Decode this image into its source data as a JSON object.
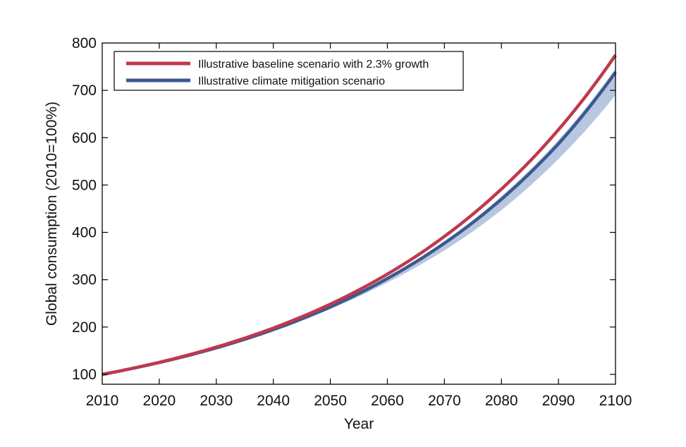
{
  "chart_data": {
    "type": "line",
    "title": "",
    "xlabel": "Year",
    "ylabel": "Global consumption (2010=100%)",
    "xlim": [
      2010,
      2100
    ],
    "ylim": [
      85,
      800
    ],
    "xticks": [
      2010,
      2020,
      2030,
      2040,
      2050,
      2060,
      2070,
      2080,
      2090,
      2100
    ],
    "yticks": [
      100,
      200,
      300,
      400,
      500,
      600,
      700,
      800
    ],
    "xtick_labels": [
      "2010",
      "2020",
      "2030",
      "2040",
      "2050",
      "2060",
      "2070",
      "2080",
      "2090",
      "2100"
    ],
    "ytick_labels": [
      "100",
      "200",
      "300",
      "400",
      "500",
      "600",
      "700",
      "800"
    ],
    "grid": false,
    "legend_position": "top-left",
    "x": [
      2010,
      2020,
      2030,
      2040,
      2050,
      2060,
      2070,
      2080,
      2090,
      2100
    ],
    "series": [
      {
        "name": "Illustrative baseline scenario with 2.3% growth",
        "color": "#c0384d",
        "values": [
          100,
          125.5,
          157.6,
          197.9,
          248.4,
          311.8,
          391.4,
          491.4,
          616.9,
          774.4
        ]
      },
      {
        "name": "Illustrative climate mitigation scenario",
        "color": "#3a5a8f",
        "values": [
          100,
          125.0,
          156.0,
          194.5,
          242.5,
          302.5,
          377.0,
          470.0,
          587.0,
          738.0
        ]
      }
    ],
    "band": {
      "name": "Mitigation scenario range",
      "color": "#b8c6e0",
      "lower": [
        100,
        124.6,
        155.0,
        192.0,
        238.0,
        294.0,
        362.0,
        447.0,
        555.0,
        690.0
      ],
      "upper": [
        100,
        125.2,
        156.6,
        195.5,
        244.5,
        305.5,
        381.0,
        476.0,
        595.0,
        746.0
      ]
    }
  }
}
